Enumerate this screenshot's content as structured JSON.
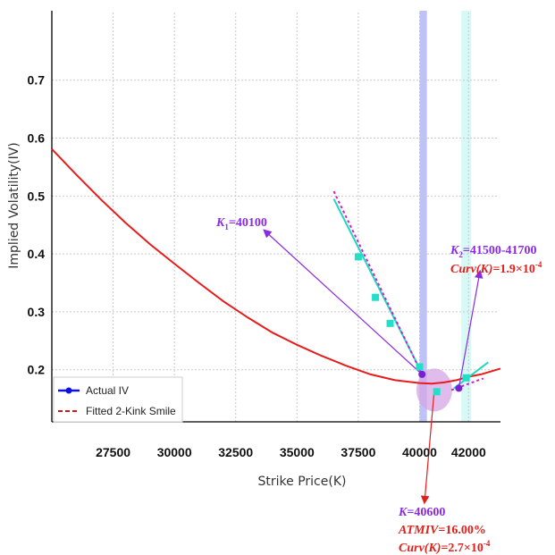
{
  "chart_data": {
    "type": "line",
    "xlabel": "Strike Price(K)",
    "ylabel": "Implied Volatility(IV)",
    "xlim": [
      25000,
      43300
    ],
    "ylim": [
      0.11,
      0.82
    ],
    "x_ticks": [
      27500,
      30000,
      32500,
      35000,
      37500,
      40000,
      42000
    ],
    "x_tick_labels": [
      "27500",
      "30000",
      "32500",
      "35000",
      "37500",
      "40000",
      "42000"
    ],
    "y_ticks": [
      0.2,
      0.3,
      0.4,
      0.5,
      0.6,
      0.7
    ],
    "y_tick_labels": [
      "0.2",
      "0.3",
      "0.4",
      "0.5",
      "0.6",
      "0.7"
    ],
    "grid": true,
    "legend": {
      "position": "bottom-left",
      "entries": [
        {
          "label": "Actual IV",
          "color": "#1010e0",
          "style": "solid-marker"
        },
        {
          "label": "Fitted 2-Kink Smile",
          "color": "#e01010",
          "style": "dashed"
        }
      ]
    },
    "series": [
      {
        "name": "Fitted smile",
        "color": "#e81c1c",
        "x": [
          25000,
          26000,
          27000,
          28000,
          29000,
          30000,
          31000,
          32000,
          33000,
          34000,
          35000,
          36000,
          37000,
          38000,
          39000,
          40000,
          40500,
          41000,
          41500,
          42000,
          42500,
          43300
        ],
        "y": [
          0.581,
          0.537,
          0.494,
          0.454,
          0.417,
          0.383,
          0.35,
          0.318,
          0.29,
          0.264,
          0.243,
          0.224,
          0.207,
          0.192,
          0.182,
          0.177,
          0.176,
          0.178,
          0.182,
          0.188,
          0.192,
          0.202
        ]
      },
      {
        "name": "Left wing tangent",
        "color": "#20d8c0",
        "x": [
          36500,
          40000
        ],
        "y": [
          0.495,
          0.202
        ]
      },
      {
        "name": "Left wing dotted",
        "color": "#d020d0",
        "x": [
          36500,
          40100
        ],
        "y": [
          0.508,
          0.192
        ]
      },
      {
        "name": "Right wing tangent",
        "color": "#20d8c0",
        "x": [
          41400,
          42800
        ],
        "y": [
          0.168,
          0.213
        ]
      },
      {
        "name": "Right wing dotted",
        "color": "#d020d0",
        "x": [
          41300,
          42600
        ],
        "y": [
          0.165,
          0.185
        ]
      }
    ],
    "market_points": {
      "color": "#20e0c8",
      "x": [
        37500,
        38200,
        38800,
        40000,
        40700,
        41900
      ],
      "y": [
        0.395,
        0.325,
        0.28,
        0.205,
        0.162,
        0.186
      ]
    },
    "kinks": {
      "color": "#7a1fd6",
      "x": [
        40100,
        41600
      ],
      "y": [
        0.192,
        0.168
      ]
    },
    "bands": [
      {
        "x0": 40000,
        "x1": 40300,
        "color": "#8a90ee"
      },
      {
        "x0": 41700,
        "x1": 42100,
        "color": "#b8f4ec"
      }
    ],
    "atm_highlight": {
      "x": 40600,
      "y": 0.165,
      "color": "#d6a6e6"
    },
    "annotations": {
      "k1": {
        "prefix": "K",
        "sub": "1",
        "value": "=40100"
      },
      "k2": {
        "prefix": "K",
        "sub": "2",
        "value": "=41500-41700"
      },
      "curv_k2": {
        "label": "Curv(K)",
        "value": "=1.9×10",
        "exp": "-4"
      },
      "atm_k": {
        "label": "K",
        "value": "=40600"
      },
      "atm_iv": {
        "label": "ATMIV",
        "value": "=16.00%"
      },
      "curv_atm": {
        "label": "Curv(K)",
        "value": "=2.7×10",
        "exp": "-4"
      }
    }
  }
}
